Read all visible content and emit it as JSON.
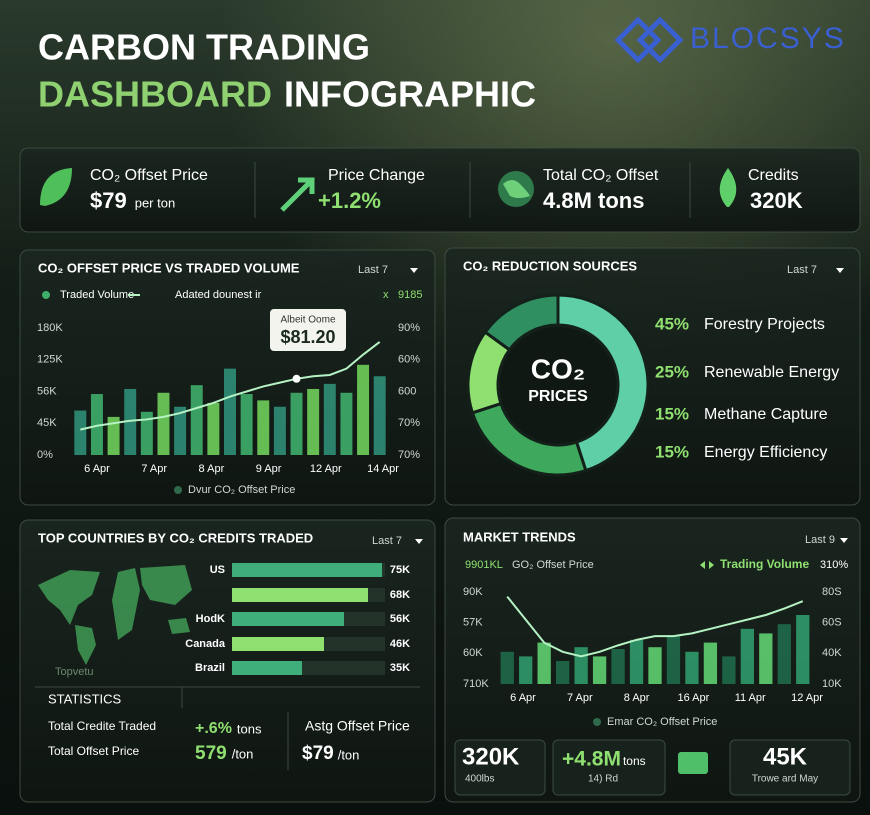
{
  "header": {
    "title_line1": "CARBON TRADING",
    "title_green": "DASHBOARD",
    "title_white": "INFOGRAPHIC",
    "brand": "BLOCSYS"
  },
  "kpis": [
    {
      "label": "CO₂ Offset Price",
      "value": "$79",
      "unit": "per ton"
    },
    {
      "label": "Price Change",
      "value": "+1.2%"
    },
    {
      "label": "Total CO₂ Offset",
      "value": "4.8M tons"
    },
    {
      "label": "Credits",
      "value": "320K"
    }
  ],
  "price_volume": {
    "title": "CO₂ OFFSET PRICE VS TRADED VOLUME",
    "period": "Last 7",
    "legend": [
      "Traded Volume",
      "Adated dounest ir"
    ],
    "legend_extra": [
      "x",
      "9185"
    ],
    "chart": {
      "type": "bar",
      "left_labels": [
        "180K",
        "125K",
        "56K",
        "45K",
        "0%"
      ],
      "right_labels": [
        "90%",
        "60%",
        "600",
        "70%",
        "70%"
      ],
      "x_labels": [
        "6 Apr",
        "7 Apr",
        "8 Apr",
        "9 Apr",
        "12 Apr",
        "14 Apr"
      ],
      "ylim": [
        0,
        100
      ],
      "values": [
        35,
        48,
        30,
        52,
        34,
        49,
        38,
        55,
        41,
        68,
        48,
        43,
        38,
        49,
        52,
        56,
        49,
        71,
        62
      ],
      "colors": [
        "#2f8f78",
        "#3fae6a",
        "#6fcf5a"
      ],
      "line_values": [
        20,
        23,
        25,
        27,
        28,
        30,
        33,
        37,
        41,
        46,
        50,
        54,
        57,
        60,
        62,
        63,
        68,
        79,
        89
      ],
      "line_color": "#b5f2c4"
    },
    "annotation": {
      "title": "Albeit Oome",
      "value": "$81.20"
    },
    "footer": "Dvur CO₂ Offset Price"
  },
  "reduction_sources": {
    "title": "CO₂ REDUCTION SOURCES",
    "period": "Last 7",
    "center": [
      "CO₂",
      "PRICES"
    ],
    "chart": {
      "type": "pie",
      "labels": [
        "Forestry Projects",
        "Renewable Energy",
        "Methane Capture",
        "Energy Efficiency"
      ],
      "values": [
        45,
        25,
        15,
        15
      ],
      "value_labels": [
        "45%",
        "25%",
        "15%",
        "15%"
      ],
      "colors": [
        "#5fcfa8",
        "#3ea85c",
        "#8fe070",
        "#2f8f60"
      ]
    }
  },
  "top_countries": {
    "title": "TOP COUNTRIES BY CO₂ CREDITS TRADED",
    "period": "Last 7",
    "map_label": "Topvetu",
    "chart": {
      "type": "bar",
      "orientation": "horizontal",
      "categories": [
        "US",
        null,
        "HodK",
        "Canada",
        "Brazil"
      ],
      "values": [
        75000,
        68000,
        56000,
        46000,
        35000
      ],
      "value_labels": [
        "75K",
        "68K",
        "56K",
        "46K",
        "35K"
      ],
      "xlim": [
        0,
        80000
      ],
      "colors": [
        "#3fae7a",
        "#8fe070"
      ]
    },
    "statistics": {
      "title": "STATISTICS",
      "rows": [
        [
          "Total Credite Traded",
          "+.6%",
          "tons"
        ],
        [
          "Total Offset Price",
          "579",
          "/ton"
        ]
      ],
      "side_label": "Astg Offset Price",
      "side_value": "$79",
      "side_unit": "/ton"
    }
  },
  "market_trends": {
    "title": "MARKET TRENDS",
    "period": "Last 9",
    "legend": [
      "9901KL",
      "GO₂ Offset Price",
      "Trading Volume",
      "310%"
    ],
    "chart": {
      "type": "bar",
      "left_labels": [
        "90K",
        "57K",
        "60K",
        "710K"
      ],
      "right_labels": [
        "80S",
        "60S",
        "40K",
        "10K"
      ],
      "x_labels": [
        "6 Apr",
        "7 Apr",
        "8 Apr",
        "16 Apr",
        "11 Apr",
        "12 Apr"
      ],
      "ylim": [
        0,
        100
      ],
      "values": [
        35,
        30,
        45,
        25,
        40,
        30,
        38,
        48,
        40,
        52,
        35,
        45,
        30,
        60,
        55,
        65,
        75
      ],
      "colors": [
        "#1f6a4a",
        "#2f9a6a",
        "#5fcf70"
      ],
      "line_values": [
        95,
        70,
        45,
        35,
        30,
        35,
        42,
        48,
        52,
        52,
        55,
        60,
        65,
        70,
        75,
        82,
        90
      ],
      "line_color": "#b5f2c4"
    },
    "footer": "Emar CO₂ Offset Price",
    "stats": [
      {
        "value": "320K",
        "caption": "400lbs"
      },
      {
        "value": "+4.8M",
        "unit": "tons",
        "caption": "14) Rd"
      },
      {
        "value": "45K",
        "caption": "Trowe ard May"
      }
    ]
  }
}
